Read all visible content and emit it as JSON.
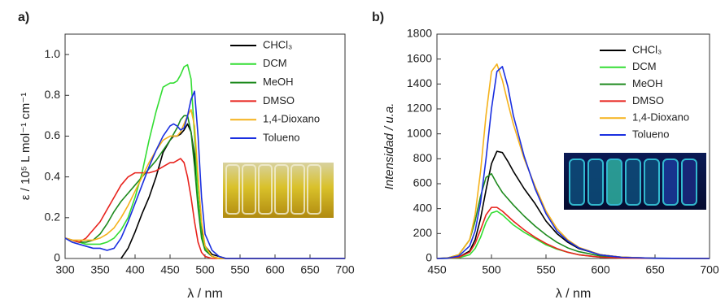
{
  "chart_data": [
    {
      "type": "line",
      "panel_label": "a)",
      "x_label": "λ / nm",
      "y_label": "ε / 10⁵ L mol⁻¹ cm⁻¹",
      "legend": "upper right",
      "x": [
        300,
        310,
        320,
        330,
        340,
        350,
        360,
        370,
        380,
        390,
        400,
        410,
        420,
        430,
        440,
        450,
        455,
        460,
        465,
        470,
        475,
        480,
        485,
        490,
        495,
        500,
        510,
        520,
        530,
        550,
        600,
        700
      ],
      "xlim": [
        300,
        700
      ],
      "xticks": [
        300,
        350,
        400,
        450,
        500,
        550,
        600,
        650,
        700
      ],
      "ylim": [
        0,
        1.1
      ],
      "yticks": [
        0,
        0.2,
        0.4,
        0.6,
        0.8,
        {
          "value": 1,
          "label": "1.0"
        }
      ],
      "series": [
        {
          "name": "CHCl₃",
          "color": "#000000",
          "values": [
            null,
            null,
            null,
            null,
            null,
            null,
            null,
            null,
            0,
            0.05,
            0.13,
            0.22,
            0.3,
            0.4,
            0.52,
            0.58,
            0.6,
            0.6,
            0.61,
            0.63,
            0.66,
            0.62,
            0.5,
            0.3,
            0.15,
            0.06,
            0.02,
            0.01,
            0,
            0,
            0,
            0
          ]
        },
        {
          "name": "DCM",
          "color": "#33dd33",
          "values": [
            0.1,
            0.09,
            0.08,
            0.07,
            0.07,
            0.07,
            0.08,
            0.1,
            0.14,
            0.2,
            0.3,
            0.42,
            0.58,
            0.72,
            0.84,
            0.86,
            0.86,
            0.87,
            0.9,
            0.94,
            0.95,
            0.88,
            0.6,
            0.3,
            0.12,
            0.05,
            0.01,
            0,
            0,
            0,
            0,
            0
          ]
        },
        {
          "name": "MeOH",
          "color": "#1e8a1e",
          "values": [
            0.1,
            0.09,
            0.08,
            0.08,
            0.09,
            0.12,
            0.17,
            0.23,
            0.28,
            0.32,
            0.36,
            0.4,
            0.44,
            0.48,
            0.53,
            0.58,
            0.61,
            0.64,
            0.68,
            0.7,
            0.7,
            0.62,
            0.45,
            0.25,
            0.1,
            0.04,
            0.01,
            0,
            0,
            0,
            0,
            0
          ]
        },
        {
          "name": "DMSO",
          "color": "#e8231d",
          "values": [
            0.1,
            0.09,
            0.08,
            0.1,
            0.14,
            0.18,
            0.24,
            0.3,
            0.36,
            0.4,
            0.42,
            0.42,
            0.42,
            0.43,
            0.45,
            0.47,
            0.47,
            0.48,
            0.49,
            0.47,
            0.4,
            0.3,
            0.18,
            0.08,
            0.03,
            0.01,
            0,
            0,
            0,
            0,
            0,
            0
          ]
        },
        {
          "name": "1,4-Dioxano",
          "color": "#f5b21b",
          "values": [
            0.1,
            0.09,
            0.09,
            0.09,
            0.09,
            0.1,
            0.12,
            0.15,
            0.2,
            0.26,
            0.33,
            0.4,
            0.47,
            0.53,
            0.58,
            0.6,
            0.6,
            0.6,
            0.62,
            0.66,
            0.7,
            0.73,
            0.65,
            0.4,
            0.18,
            0.06,
            0.01,
            0,
            0,
            0,
            0,
            0
          ]
        },
        {
          "name": "Tolueno",
          "color": "#1a2fe0",
          "values": [
            0.1,
            0.08,
            0.07,
            0.06,
            0.05,
            0.05,
            0.04,
            0.05,
            0.1,
            0.18,
            0.27,
            0.36,
            0.45,
            0.53,
            0.6,
            0.65,
            0.66,
            0.65,
            0.63,
            0.64,
            0.7,
            0.78,
            0.82,
            0.6,
            0.3,
            0.12,
            0.04,
            0.01,
            0,
            0,
            0,
            0
          ]
        }
      ]
    },
    {
      "type": "line",
      "panel_label": "b)",
      "x_label": "λ / nm",
      "y_label": "Intensidad / u.a.",
      "legend": "upper right",
      "x": [
        450,
        460,
        470,
        480,
        485,
        490,
        495,
        500,
        505,
        510,
        515,
        520,
        530,
        540,
        550,
        560,
        570,
        580,
        600,
        620,
        650,
        700
      ],
      "xlim": [
        450,
        700
      ],
      "xticks": [
        450,
        500,
        550,
        600,
        650,
        700
      ],
      "ylim": [
        0,
        1800
      ],
      "yticks": [
        0,
        200,
        400,
        600,
        800,
        1000,
        1200,
        1400,
        1600,
        1800
      ],
      "series": [
        {
          "name": "CHCl₃",
          "color": "#000000",
          "values": [
            0,
            2,
            10,
            60,
            150,
            320,
            550,
            760,
            860,
            850,
            780,
            700,
            560,
            440,
            300,
            200,
            130,
            80,
            30,
            10,
            2,
            0
          ]
        },
        {
          "name": "DCM",
          "color": "#33dd33",
          "values": [
            0,
            1,
            5,
            30,
            80,
            170,
            290,
            365,
            380,
            350,
            310,
            270,
            210,
            160,
            110,
            75,
            50,
            30,
            10,
            3,
            1,
            0
          ]
        },
        {
          "name": "MeOH",
          "color": "#1e8a1e",
          "values": [
            0,
            5,
            30,
            150,
            300,
            500,
            650,
            680,
            600,
            530,
            480,
            430,
            340,
            260,
            190,
            130,
            85,
            55,
            20,
            7,
            2,
            0
          ]
        },
        {
          "name": "DMSO",
          "color": "#e8231d",
          "values": [
            0,
            2,
            10,
            50,
            120,
            230,
            350,
            410,
            410,
            380,
            340,
            300,
            230,
            170,
            120,
            80,
            50,
            30,
            10,
            3,
            1,
            0
          ]
        },
        {
          "name": "1,4-Dioxano",
          "color": "#f5b21b",
          "values": [
            0,
            5,
            30,
            150,
            350,
            700,
            1150,
            1500,
            1560,
            1430,
            1250,
            1080,
            800,
            580,
            380,
            240,
            150,
            90,
            30,
            10,
            2,
            0
          ]
        },
        {
          "name": "Tolueno",
          "color": "#1a2fe0",
          "values": [
            0,
            3,
            20,
            100,
            220,
            450,
            800,
            1200,
            1500,
            1540,
            1380,
            1150,
            820,
            560,
            360,
            220,
            140,
            85,
            28,
            9,
            2,
            0
          ]
        }
      ]
    }
  ]
}
